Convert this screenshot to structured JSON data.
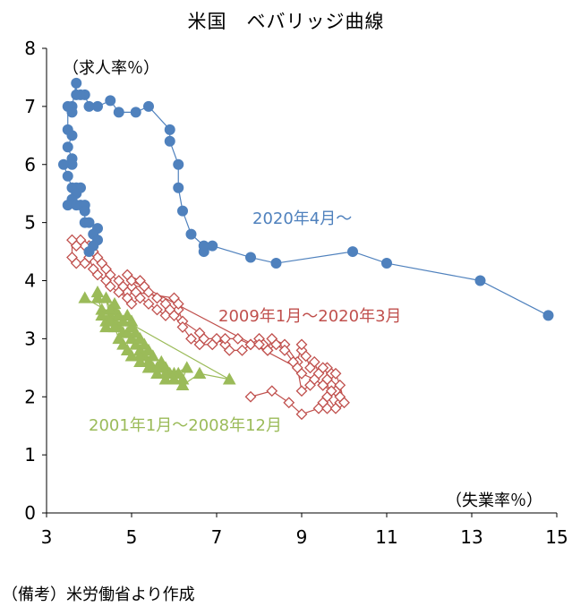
{
  "chart_data": {
    "type": "scatter",
    "title": "米国　ベバリッジ曲線",
    "xlabel": "（失業率％）",
    "ylabel": "（求人率％）",
    "xlim": [
      3,
      15
    ],
    "ylim": [
      0,
      8
    ],
    "x_ticks": [
      "3",
      "5",
      "7",
      "9",
      "11",
      "13",
      "15"
    ],
    "y_ticks": [
      "0",
      "1",
      "2",
      "3",
      "4",
      "5",
      "6",
      "7",
      "8"
    ],
    "series": [
      {
        "name": "2001年1月～2008年12月",
        "color": "#9BBB59",
        "marker": "triangle",
        "points": [
          [
            4.2,
            3.8
          ],
          [
            4.2,
            3.7
          ],
          [
            4.3,
            3.5
          ],
          [
            4.3,
            3.4
          ],
          [
            4.4,
            3.3
          ],
          [
            4.4,
            3.2
          ],
          [
            4.5,
            3.4
          ],
          [
            4.6,
            3.3
          ],
          [
            4.7,
            3.2
          ],
          [
            4.8,
            3.1
          ],
          [
            4.9,
            3.1
          ],
          [
            5.0,
            3.2
          ],
          [
            5.0,
            3.0
          ],
          [
            5.1,
            2.9
          ],
          [
            5.2,
            2.8
          ],
          [
            5.2,
            2.6
          ],
          [
            5.3,
            2.7
          ],
          [
            5.4,
            2.6
          ],
          [
            5.4,
            2.5
          ],
          [
            5.5,
            2.5
          ],
          [
            5.6,
            2.4
          ],
          [
            5.7,
            2.5
          ],
          [
            5.8,
            2.5
          ],
          [
            5.9,
            2.4
          ],
          [
            6.0,
            2.3
          ],
          [
            6.1,
            2.4
          ],
          [
            6.2,
            2.3
          ],
          [
            6.3,
            2.5
          ],
          [
            6.0,
            2.4
          ],
          [
            5.8,
            2.3
          ],
          [
            5.7,
            2.6
          ],
          [
            5.5,
            2.7
          ],
          [
            5.4,
            2.8
          ],
          [
            5.3,
            2.9
          ],
          [
            5.2,
            3.0
          ],
          [
            5.1,
            3.1
          ],
          [
            5.0,
            3.3
          ],
          [
            4.9,
            3.4
          ],
          [
            4.8,
            3.3
          ],
          [
            4.7,
            3.4
          ],
          [
            4.6,
            3.5
          ],
          [
            4.6,
            3.6
          ],
          [
            4.5,
            3.5
          ],
          [
            4.4,
            3.7
          ],
          [
            4.5,
            3.3
          ],
          [
            4.6,
            3.2
          ],
          [
            4.7,
            3.0
          ],
          [
            4.8,
            2.9
          ],
          [
            4.9,
            2.8
          ],
          [
            5.0,
            2.7
          ],
          [
            5.2,
            2.7
          ],
          [
            5.4,
            2.6
          ],
          [
            5.6,
            2.5
          ],
          [
            5.8,
            2.4
          ],
          [
            6.0,
            2.3
          ],
          [
            6.2,
            2.2
          ],
          [
            6.6,
            2.4
          ],
          [
            7.3,
            2.3
          ],
          [
            3.9,
            3.7
          ]
        ]
      },
      {
        "name": "2009年1月～2020年3月",
        "color": "#C0504D",
        "marker": "diamond-open",
        "points": [
          [
            7.8,
            2.0
          ],
          [
            8.3,
            2.1
          ],
          [
            8.7,
            1.9
          ],
          [
            9.0,
            1.7
          ],
          [
            9.4,
            1.8
          ],
          [
            9.5,
            1.9
          ],
          [
            9.6,
            1.8
          ],
          [
            9.6,
            2.0
          ],
          [
            9.8,
            1.8
          ],
          [
            9.9,
            1.9
          ],
          [
            9.8,
            2.1
          ],
          [
            9.7,
            2.2
          ],
          [
            9.6,
            2.3
          ],
          [
            9.5,
            2.2
          ],
          [
            9.7,
            2.4
          ],
          [
            9.6,
            2.5
          ],
          [
            9.4,
            2.4
          ],
          [
            9.3,
            2.6
          ],
          [
            9.2,
            2.5
          ],
          [
            9.1,
            2.7
          ],
          [
            9.0,
            2.8
          ],
          [
            9.0,
            2.9
          ],
          [
            8.9,
            2.6
          ],
          [
            8.6,
            2.9
          ],
          [
            8.3,
            3.0
          ],
          [
            8.2,
            2.8
          ],
          [
            8.1,
            2.9
          ],
          [
            8.0,
            3.0
          ],
          [
            7.8,
            2.9
          ],
          [
            7.6,
            2.8
          ],
          [
            7.3,
            2.8
          ],
          [
            7.2,
            2.9
          ],
          [
            7.0,
            3.0
          ],
          [
            6.7,
            3.0
          ],
          [
            6.6,
            3.1
          ],
          [
            6.2,
            3.3
          ],
          [
            6.1,
            3.5
          ],
          [
            5.9,
            3.5
          ],
          [
            5.8,
            3.6
          ],
          [
            5.6,
            3.7
          ],
          [
            5.4,
            3.8
          ],
          [
            5.3,
            3.9
          ],
          [
            5.0,
            3.9
          ],
          [
            4.9,
            3.8
          ],
          [
            4.8,
            3.9
          ],
          [
            4.7,
            4.0
          ],
          [
            4.5,
            4.1
          ],
          [
            4.4,
            4.2
          ],
          [
            4.3,
            4.3
          ],
          [
            4.2,
            4.4
          ],
          [
            4.1,
            4.5
          ],
          [
            4.0,
            4.6
          ],
          [
            3.9,
            4.6
          ],
          [
            3.8,
            4.7
          ],
          [
            3.7,
            4.6
          ],
          [
            3.6,
            4.7
          ],
          [
            3.6,
            4.4
          ],
          [
            3.7,
            4.3
          ],
          [
            3.9,
            4.3
          ],
          [
            4.0,
            4.4
          ],
          [
            4.1,
            4.2
          ],
          [
            4.2,
            4.1
          ],
          [
            4.4,
            4.0
          ],
          [
            4.5,
            3.9
          ],
          [
            4.7,
            3.8
          ],
          [
            4.9,
            3.7
          ],
          [
            5.0,
            3.6
          ],
          [
            5.2,
            3.7
          ],
          [
            5.4,
            3.6
          ],
          [
            5.6,
            3.5
          ],
          [
            5.8,
            3.4
          ],
          [
            6.0,
            3.4
          ],
          [
            6.2,
            3.2
          ],
          [
            6.4,
            3.0
          ],
          [
            6.6,
            2.9
          ],
          [
            6.9,
            2.9
          ],
          [
            7.2,
            3.0
          ],
          [
            7.5,
            3.0
          ],
          [
            7.8,
            2.9
          ],
          [
            8.0,
            2.9
          ],
          [
            8.2,
            2.8
          ],
          [
            8.4,
            2.9
          ],
          [
            8.6,
            2.8
          ],
          [
            8.8,
            2.6
          ],
          [
            9.0,
            2.4
          ],
          [
            9.3,
            2.3
          ],
          [
            9.5,
            2.2
          ],
          [
            9.7,
            2.1
          ],
          [
            9.9,
            2.0
          ],
          [
            10.0,
            1.9
          ],
          [
            9.9,
            2.2
          ],
          [
            9.8,
            2.4
          ],
          [
            9.5,
            2.5
          ],
          [
            9.2,
            2.2
          ],
          [
            9.0,
            2.1
          ],
          [
            8.9,
            2.5
          ],
          [
            5.0,
            4.0
          ],
          [
            5.2,
            4.0
          ],
          [
            4.9,
            4.1
          ],
          [
            5.1,
            3.8
          ],
          [
            6.0,
            3.7
          ],
          [
            6.1,
            3.6
          ]
        ]
      },
      {
        "name": "2020年4月～",
        "color": "#4F81BD",
        "marker": "circle",
        "points": [
          [
            14.8,
            3.4
          ],
          [
            13.2,
            4.0
          ],
          [
            11.0,
            4.3
          ],
          [
            10.2,
            4.5
          ],
          [
            8.4,
            4.3
          ],
          [
            7.8,
            4.4
          ],
          [
            6.9,
            4.6
          ],
          [
            6.7,
            4.5
          ],
          [
            6.7,
            4.6
          ],
          [
            6.4,
            4.8
          ],
          [
            6.2,
            5.2
          ],
          [
            6.1,
            5.6
          ],
          [
            6.1,
            6.0
          ],
          [
            5.9,
            6.4
          ],
          [
            5.9,
            6.6
          ],
          [
            5.4,
            7.0
          ],
          [
            5.1,
            6.9
          ],
          [
            4.7,
            6.9
          ],
          [
            4.5,
            7.1
          ],
          [
            4.2,
            7.0
          ],
          [
            4.0,
            7.0
          ],
          [
            3.9,
            7.2
          ],
          [
            3.8,
            7.2
          ],
          [
            3.7,
            7.2
          ],
          [
            3.7,
            7.4
          ],
          [
            3.6,
            7.0
          ],
          [
            3.6,
            6.9
          ],
          [
            3.5,
            7.0
          ],
          [
            3.5,
            6.6
          ],
          [
            3.6,
            6.5
          ],
          [
            3.5,
            6.3
          ],
          [
            3.6,
            6.1
          ],
          [
            3.6,
            6.0
          ],
          [
            3.4,
            6.0
          ],
          [
            3.5,
            5.8
          ],
          [
            3.6,
            5.6
          ],
          [
            3.7,
            5.6
          ],
          [
            3.8,
            5.6
          ],
          [
            3.7,
            5.5
          ],
          [
            3.6,
            5.4
          ],
          [
            3.5,
            5.3
          ],
          [
            3.7,
            5.3
          ],
          [
            3.8,
            5.3
          ],
          [
            3.9,
            5.3
          ],
          [
            3.9,
            5.2
          ],
          [
            3.9,
            5.0
          ],
          [
            4.0,
            5.0
          ],
          [
            4.2,
            4.9
          ],
          [
            4.1,
            4.8
          ],
          [
            4.2,
            4.7
          ],
          [
            4.1,
            4.6
          ],
          [
            4.0,
            4.5
          ]
        ]
      }
    ],
    "note": "（備考）米労働省より作成"
  }
}
